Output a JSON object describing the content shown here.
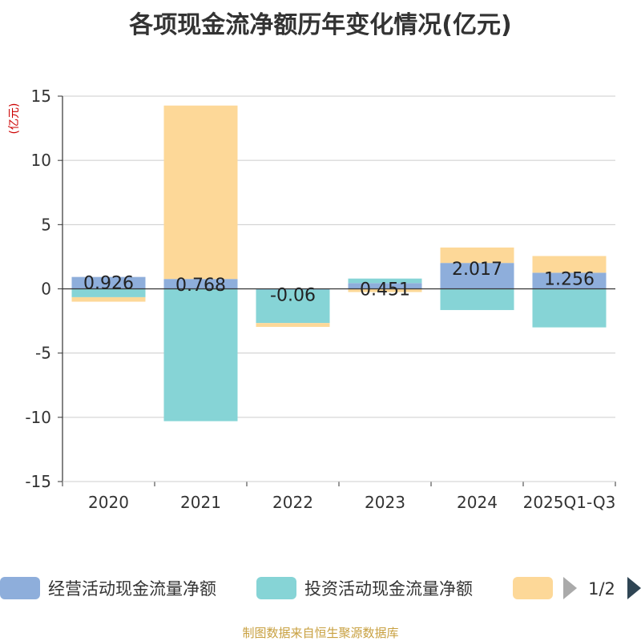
{
  "chart_data": {
    "type": "bar",
    "stacked": true,
    "title": "各项现金流净额历年变化情况(亿元)",
    "ylabel": "(亿元)",
    "xlabel": "",
    "ylim": [
      -15,
      15
    ],
    "yticks": [
      15,
      10,
      5,
      0,
      -5,
      -10,
      -15
    ],
    "categories": [
      "2020",
      "2021",
      "2022",
      "2023",
      "2024",
      "2025Q1-Q3"
    ],
    "series": [
      {
        "name": "经营活动现金流量净额",
        "color": "#8eaedb",
        "values": [
          0.926,
          0.768,
          -0.06,
          0.451,
          2.017,
          1.256
        ]
      },
      {
        "name": "投资活动现金流量净额",
        "color": "#86d4d6",
        "values": [
          -0.65,
          -10.3,
          -2.6,
          0.35,
          -1.65,
          -3.0
        ]
      },
      {
        "name": "",
        "color": "#fdd898",
        "values": [
          -0.35,
          13.5,
          -0.3,
          -0.25,
          1.2,
          1.3
        ]
      }
    ],
    "data_labels": [
      "0.926",
      "0.768",
      "-0.06",
      "0.451",
      "2.017",
      "1.256"
    ],
    "legend": {
      "position": "bottom",
      "page": "1/2",
      "items": [
        "经营活动现金流量净额",
        "投资活动现金流量净额",
        ""
      ]
    },
    "source": "制图数据来自恒生聚源数据库"
  }
}
